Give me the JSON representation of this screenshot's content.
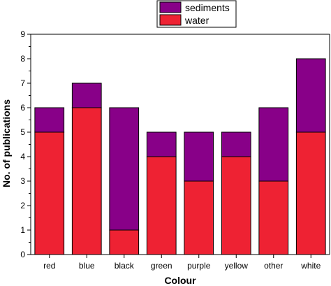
{
  "chart_data": {
    "type": "bar",
    "stacked": true,
    "categories": [
      "red",
      "blue",
      "black",
      "green",
      "purple",
      "yellow",
      "other",
      "white"
    ],
    "series": [
      {
        "name": "water",
        "values": [
          5,
          6,
          1,
          4,
          3,
          4,
          3,
          5
        ],
        "color": "#ee2233"
      },
      {
        "name": "sediments",
        "values": [
          1,
          1,
          5,
          1,
          2,
          1,
          3,
          3
        ],
        "color": "#880088"
      }
    ],
    "xlabel": "Colour",
    "ylabel": "No. of publications",
    "ylim": [
      0,
      9
    ],
    "yticks": [
      "0",
      "1",
      "2",
      "3",
      "4",
      "5",
      "6",
      "7",
      "8",
      "9"
    ],
    "legend": {
      "placement": "top-center",
      "entries": [
        "sediments",
        "water"
      ]
    },
    "grid": false
  }
}
